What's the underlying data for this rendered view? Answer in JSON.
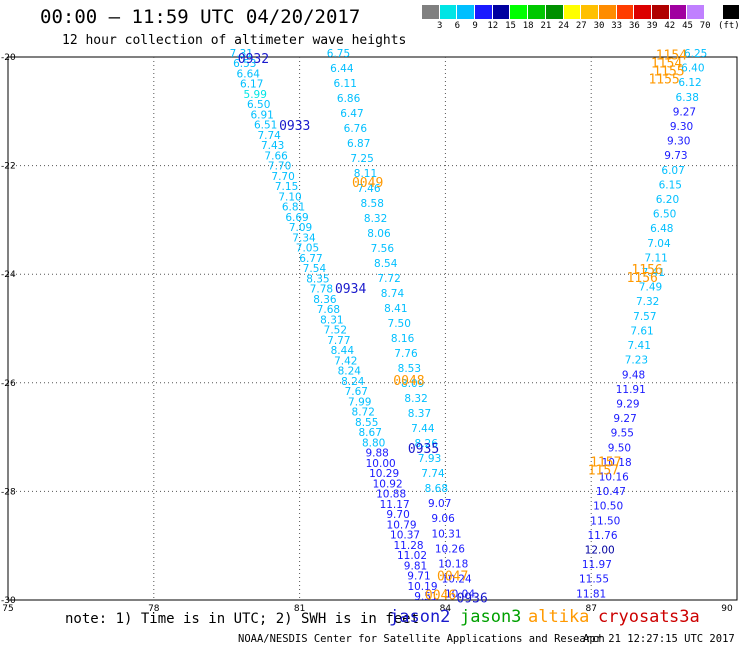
{
  "header": {
    "title": "00:00 – 11:59 UTC 04/20/2017",
    "subtitle": "12 hour collection of altimeter wave heights"
  },
  "colorbar": {
    "colors": [
      "#808080",
      "#00e5e5",
      "#00bfff",
      "#1a1aff",
      "#0000a0",
      "#00ff00",
      "#00c800",
      "#009000",
      "#ffff00",
      "#ffc000",
      "#ff8c00",
      "#ff3c00",
      "#dc0000",
      "#b00000",
      "#a000a0",
      "#c080ff",
      "#ffffff",
      "#000000"
    ],
    "labels": [
      "3",
      "6",
      "9",
      "12",
      "15",
      "18",
      "21",
      "24",
      "27",
      "30",
      "33",
      "36",
      "39",
      "42",
      "45",
      "70",
      "(ft)"
    ]
  },
  "axes": {
    "x_ticks": [
      "75",
      "78",
      "81",
      "84",
      "87",
      "90"
    ],
    "y_ticks": [
      "-20",
      "-22",
      "-24",
      "-26",
      "-28",
      "-30"
    ]
  },
  "note": "note: 1) Time is in UTC; 2) SWH is in feet",
  "satellites": [
    {
      "name": "jason2",
      "color": "#1a1acc"
    },
    {
      "name": "jason3",
      "color": "#00a000"
    },
    {
      "name": "altika",
      "color": "#ff9900"
    },
    {
      "name": "cryosat",
      "color": "#cc0000"
    },
    {
      "name": "s3a",
      "color": "#cc0000"
    }
  ],
  "footer": "NOAA/NESDIS Center for Satellite Applications and Research",
  "timestamp": "Apr 21 12:27:15 UTC 2017",
  "track_labels": [
    {
      "text": "0932",
      "lon": 80.05,
      "lat": -20.02,
      "color": "#1a1acc"
    },
    {
      "text": "0933",
      "lon": 80.9,
      "lat": -21.25,
      "color": "#1a1acc"
    },
    {
      "text": "0934",
      "lon": 82.05,
      "lat": -24.25,
      "color": "#1a1acc"
    },
    {
      "text": "0935",
      "lon": 83.55,
      "lat": -27.2,
      "color": "#1a1acc"
    },
    {
      "text": "0936",
      "lon": 84.55,
      "lat": -29.95,
      "color": "#1a1acc"
    },
    {
      "text": "0049",
      "lon": 82.4,
      "lat": -22.3,
      "color": "#ff9900"
    },
    {
      "text": "0048",
      "lon": 83.25,
      "lat": -25.95,
      "color": "#ff9900"
    },
    {
      "text": "0047",
      "lon": 84.15,
      "lat": -29.55,
      "color": "#ff9900"
    },
    {
      "text": "0046",
      "lon": 83.9,
      "lat": -29.9,
      "color": "#ff9900"
    },
    {
      "text": "1154",
      "lon": 88.65,
      "lat": -19.95,
      "color": "#ff9900"
    },
    {
      "text": "1154",
      "lon": 88.55,
      "lat": -20.1,
      "color": "#ff9900"
    },
    {
      "text": "1155",
      "lon": 88.6,
      "lat": -20.25,
      "color": "#ff9900"
    },
    {
      "text": "1155",
      "lon": 88.5,
      "lat": -20.4,
      "color": "#ff9900"
    },
    {
      "text": "1156",
      "lon": 88.15,
      "lat": -23.9,
      "color": "#ff9900"
    },
    {
      "text": "1156",
      "lon": 88.05,
      "lat": -24.05,
      "color": "#ff9900"
    },
    {
      "text": "1157",
      "lon": 87.3,
      "lat": -27.45,
      "color": "#ff9900"
    },
    {
      "text": "1157",
      "lon": 87.25,
      "lat": -27.6,
      "color": "#ff9900"
    }
  ],
  "chart_data": {
    "type": "scatter",
    "title": "00:00 – 11:59 UTC 04/20/2017",
    "subtitle": "12 hour collection of altimeter wave heights",
    "xlim": [
      75,
      90
    ],
    "ylim": [
      -30,
      -20
    ],
    "units": "ft",
    "series": [
      {
        "name": "jason2",
        "tracks": [
          {
            "lon_start": 79.8,
            "lat_start": -20.0,
            "lon_end": 83.6,
            "lat_end": -30.0,
            "values": [
              "7.31",
              "6.53",
              "6.64",
              "6.17",
              "5.99",
              "6.50",
              "6.91",
              "6.51",
              "7.74",
              "7.43",
              "7.66",
              "7.70",
              "7.70",
              "7.15",
              "7.10",
              "6.81",
              "6.69",
              "7.09",
              "7.34",
              "7.05",
              "6.77",
              "7.54",
              "8.35",
              "7.78",
              "8.36",
              "7.68",
              "8.31",
              "7.52",
              "7.77",
              "8.44",
              "7.42",
              "8.24",
              "8.24",
              "7.67",
              "7.99",
              "8.72",
              "8.55",
              "8.67",
              "8.80",
              "9.88",
              "10.00",
              "10.29",
              "10.92",
              "10.88",
              "11.17",
              "9.70",
              "10.79",
              "10.37",
              "11.28",
              "11.02",
              "9.81",
              "9.71",
              "10.19",
              "9.51"
            ]
          },
          {
            "lon_start": 81.8,
            "lat_start": -20.0,
            "lon_end": 84.3,
            "lat_end": -29.95,
            "values": [
              "6.75",
              "6.44",
              "6.11",
              "6.86",
              "6.47",
              "6.76",
              "6.87",
              "7.25",
              "8.11",
              "7.46",
              "8.58",
              "8.32",
              "8.06",
              "7.56",
              "8.54",
              "7.72",
              "8.74",
              "8.41",
              "7.50",
              "8.16",
              "7.76",
              "8.53",
              "8.09",
              "8.32",
              "8.37",
              "7.44",
              "8.26",
              "7.93",
              "7.74",
              "8.68",
              "9.07",
              "9.06",
              "10.31",
              "10.26",
              "10.18",
              "10.24",
              "10.04"
            ]
          }
        ]
      },
      {
        "name": "jason3",
        "tracks": [
          {
            "lon_start": 87.0,
            "lat_start": -29.95,
            "lon_end": 89.15,
            "lat_end": -20.0,
            "values": [
              "11.81",
              "11.55",
              "11.97",
              "12.00",
              "11.76",
              "11.50",
              "10.50",
              "10.47",
              "10.16",
              "10.18",
              "9.50",
              "9.55",
              "9.27",
              "9.29",
              "11.91",
              "9.48",
              "7.23",
              "7.41",
              "7.61",
              "7.57",
              "7.32",
              "7.49",
              "7.41",
              "7.11",
              "7.04",
              "6.48",
              "6.50",
              "6.20",
              "6.15",
              "6.07",
              "9.73",
              "9.30",
              "9.30",
              "9.27",
              "6.38",
              "6.12",
              "6.40",
              "6.25"
            ]
          }
        ]
      }
    ]
  }
}
